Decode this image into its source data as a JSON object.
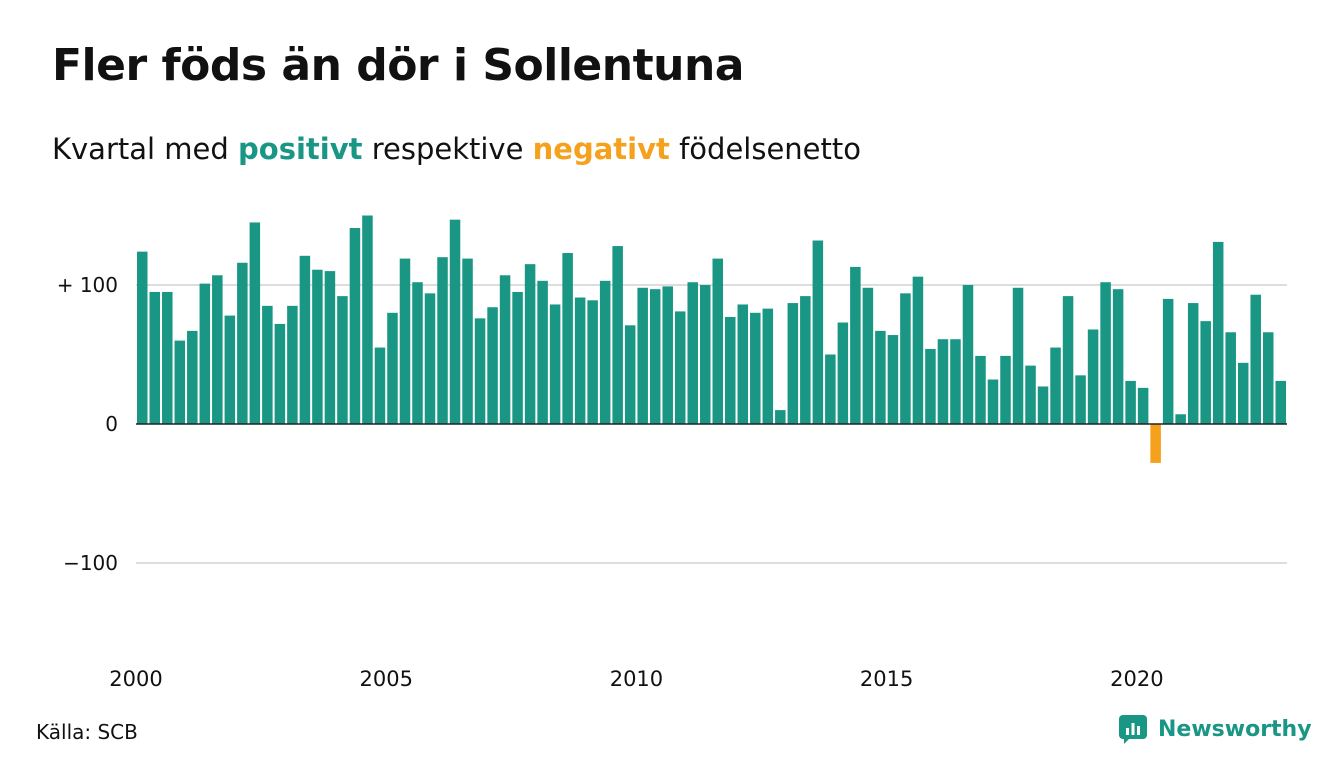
{
  "title": "Fler föds än dör i Sollentuna",
  "subtitle": {
    "prefix": "Kvartal med",
    "positive_word": "positivt",
    "middle": "respektive",
    "negative_word": "negativt",
    "suffix": "födelsenetto"
  },
  "source": "Källa: SCB",
  "brand": "Newsworthy",
  "colors": {
    "positive": "#1a9685",
    "negative": "#f5a11c",
    "grid": "#dddddd",
    "axis": "#222222",
    "brand": "#1a9685"
  },
  "chart_data": {
    "type": "bar",
    "x_start": "2000 Q1",
    "x_ticks": [
      2000,
      2005,
      2010,
      2015,
      2020
    ],
    "y_ticks": [
      {
        "value": 100,
        "label": "+ 100"
      },
      {
        "value": 0,
        "label": "0"
      },
      {
        "value": -100,
        "label": "−100"
      }
    ],
    "ylim": [
      -170,
      160
    ],
    "grid": true,
    "values": [
      124,
      95,
      95,
      60,
      67,
      101,
      107,
      78,
      116,
      145,
      85,
      72,
      85,
      121,
      111,
      110,
      92,
      141,
      150,
      55,
      80,
      119,
      102,
      94,
      120,
      147,
      119,
      76,
      84,
      107,
      95,
      115,
      103,
      86,
      123,
      91,
      89,
      103,
      128,
      71,
      98,
      97,
      99,
      81,
      102,
      100,
      119,
      77,
      86,
      80,
      83,
      10,
      87,
      92,
      132,
      50,
      73,
      113,
      98,
      67,
      64,
      94,
      106,
      54,
      61,
      61,
      100,
      49,
      32,
      49,
      98,
      42,
      27,
      55,
      92,
      35,
      68,
      102,
      97,
      31,
      26,
      -28,
      90,
      7,
      87,
      74,
      131,
      66,
      44,
      93,
      66,
      31
    ]
  }
}
